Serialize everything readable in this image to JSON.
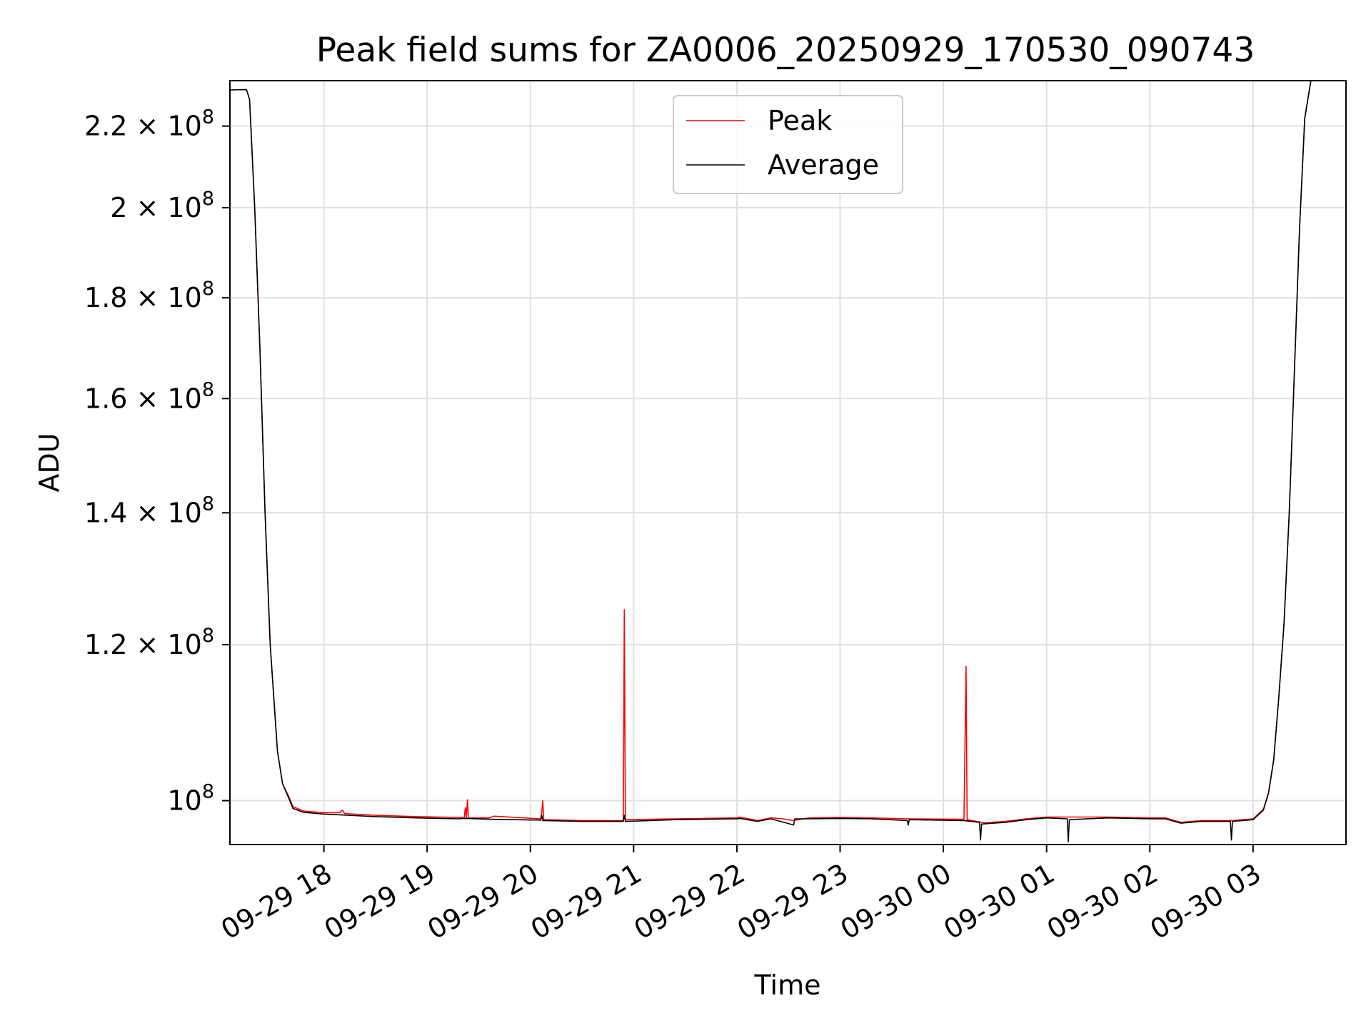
{
  "chart_data": {
    "type": "line",
    "title": "Peak field sums for ZA0006_20250929_170530_090743",
    "xlabel": "Time",
    "ylabel": "ADU",
    "yscale": "log",
    "ylim": [
      95000000.0,
      232000000.0
    ],
    "xlim": [
      17.09,
      27.9
    ],
    "grid": true,
    "legend_position": "top-center",
    "x_ticks": [
      {
        "label": "09-29 18",
        "value": 18
      },
      {
        "label": "09-29 19",
        "value": 19
      },
      {
        "label": "09-29 20",
        "value": 20
      },
      {
        "label": "09-29 21",
        "value": 21
      },
      {
        "label": "09-29 22",
        "value": 22
      },
      {
        "label": "09-29 23",
        "value": 23
      },
      {
        "label": "09-30 00",
        "value": 24
      },
      {
        "label": "09-30 01",
        "value": 25
      },
      {
        "label": "09-30 02",
        "value": 26
      },
      {
        "label": "09-30 03",
        "value": 27
      }
    ],
    "y_ticks": [
      {
        "mantissa": "10",
        "exponent": "8",
        "value": 100000000.0
      },
      {
        "mantissa": "1.2 × 10",
        "exponent": "8",
        "value": 120000000.0
      },
      {
        "mantissa": "1.4 × 10",
        "exponent": "8",
        "value": 140000000.0
      },
      {
        "mantissa": "1.6 × 10",
        "exponent": "8",
        "value": 160000000.0
      },
      {
        "mantissa": "1.8 × 10",
        "exponent": "8",
        "value": 180000000.0
      },
      {
        "mantissa": "2 × 10",
        "exponent": "8",
        "value": 200000000.0
      },
      {
        "mantissa": "2.2 × 10",
        "exponent": "8",
        "value": 220000000.0
      }
    ],
    "series": [
      {
        "name": "Peak",
        "color": "#ff0000",
        "points": [
          [
            17.09,
            229500000
          ],
          [
            17.25,
            229600000
          ],
          [
            17.28,
            227000000
          ],
          [
            17.33,
            200000000
          ],
          [
            17.38,
            170000000
          ],
          [
            17.43,
            140000000
          ],
          [
            17.48,
            120000000
          ],
          [
            17.55,
            106000000
          ],
          [
            17.6,
            102000000
          ],
          [
            17.66,
            100500000
          ],
          [
            17.7,
            99300000
          ],
          [
            17.8,
            98800000
          ],
          [
            18.0,
            98600000
          ],
          [
            18.15,
            98600000
          ],
          [
            18.18,
            98900000
          ],
          [
            18.2,
            98500000
          ],
          [
            18.5,
            98300000
          ],
          [
            18.9,
            98150000
          ],
          [
            19.3,
            98050000
          ],
          [
            19.36,
            98050000
          ],
          [
            19.37,
            99200000
          ],
          [
            19.38,
            98000000
          ],
          [
            19.39,
            100100000
          ],
          [
            19.4,
            98000000
          ],
          [
            19.6,
            98000000
          ],
          [
            19.65,
            98200000
          ],
          [
            20.1,
            97900000
          ],
          [
            20.11,
            98700000
          ],
          [
            20.12,
            100000000
          ],
          [
            20.13,
            97800000
          ],
          [
            20.5,
            97700000
          ],
          [
            20.9,
            97700000
          ],
          [
            20.91,
            125000000
          ],
          [
            20.92,
            97800000
          ],
          [
            21.4,
            97900000
          ],
          [
            22.0,
            98000000
          ],
          [
            22.03,
            98100000
          ],
          [
            22.2,
            97700000
          ],
          [
            22.33,
            98000000
          ],
          [
            22.45,
            97900000
          ],
          [
            22.55,
            97700000
          ],
          [
            22.7,
            98000000
          ],
          [
            23.0,
            98050000
          ],
          [
            23.3,
            98000000
          ],
          [
            23.65,
            97900000
          ],
          [
            24.2,
            97850000
          ],
          [
            24.22,
            117000000
          ],
          [
            24.23,
            97800000
          ],
          [
            24.4,
            97450000
          ],
          [
            24.6,
            97600000
          ],
          [
            24.8,
            97900000
          ],
          [
            25.0,
            98100000
          ],
          [
            25.3,
            98100000
          ],
          [
            25.6,
            98100000
          ],
          [
            26.0,
            98000000
          ],
          [
            26.15,
            98000000
          ],
          [
            26.3,
            97500000
          ],
          [
            26.5,
            97700000
          ],
          [
            26.8,
            97700000
          ],
          [
            27.0,
            97900000
          ],
          [
            27.1,
            99000000
          ],
          [
            27.15,
            101000000
          ],
          [
            27.2,
            105000000
          ],
          [
            27.25,
            113000000
          ],
          [
            27.3,
            123000000
          ],
          [
            27.35,
            140000000
          ],
          [
            27.4,
            165000000
          ],
          [
            27.45,
            195000000
          ],
          [
            27.5,
            222000000
          ],
          [
            27.56,
            232000000
          ],
          [
            27.9,
            232000000
          ]
        ]
      },
      {
        "name": "Average",
        "color": "#000000",
        "points": [
          [
            17.09,
            229500000
          ],
          [
            17.25,
            229600000
          ],
          [
            17.28,
            227000000
          ],
          [
            17.33,
            200000000
          ],
          [
            17.38,
            170000000
          ],
          [
            17.43,
            140000000
          ],
          [
            17.48,
            120000000
          ],
          [
            17.55,
            106000000
          ],
          [
            17.6,
            102000000
          ],
          [
            17.66,
            100300000
          ],
          [
            17.7,
            99100000
          ],
          [
            17.8,
            98650000
          ],
          [
            18.0,
            98450000
          ],
          [
            18.5,
            98150000
          ],
          [
            18.9,
            98000000
          ],
          [
            19.3,
            97900000
          ],
          [
            19.37,
            97950000
          ],
          [
            19.6,
            97850000
          ],
          [
            20.1,
            97750000
          ],
          [
            20.11,
            98300000
          ],
          [
            20.12,
            97700000
          ],
          [
            20.5,
            97600000
          ],
          [
            20.9,
            97600000
          ],
          [
            20.91,
            98300000
          ],
          [
            20.92,
            97600000
          ],
          [
            21.4,
            97800000
          ],
          [
            22.0,
            97900000
          ],
          [
            22.03,
            97950000
          ],
          [
            22.2,
            97600000
          ],
          [
            22.33,
            97900000
          ],
          [
            22.55,
            97200000
          ],
          [
            22.56,
            97900000
          ],
          [
            22.7,
            97900000
          ],
          [
            23.0,
            97950000
          ],
          [
            23.3,
            97900000
          ],
          [
            23.65,
            97700000
          ],
          [
            23.66,
            97200000
          ],
          [
            23.67,
            97800000
          ],
          [
            24.2,
            97700000
          ],
          [
            24.35,
            97500000
          ],
          [
            24.36,
            95500000
          ],
          [
            24.37,
            97300000
          ],
          [
            24.6,
            97500000
          ],
          [
            24.8,
            97800000
          ],
          [
            25.0,
            98000000
          ],
          [
            25.2,
            97900000
          ],
          [
            25.21,
            95300000
          ],
          [
            25.22,
            97800000
          ],
          [
            25.6,
            98000000
          ],
          [
            26.0,
            97900000
          ],
          [
            26.15,
            97900000
          ],
          [
            26.3,
            97400000
          ],
          [
            26.5,
            97600000
          ],
          [
            26.78,
            97600000
          ],
          [
            26.79,
            95500000
          ],
          [
            26.8,
            97600000
          ],
          [
            27.0,
            97800000
          ],
          [
            27.1,
            98900000
          ],
          [
            27.15,
            100900000
          ],
          [
            27.2,
            104900000
          ],
          [
            27.25,
            113000000
          ],
          [
            27.3,
            123000000
          ],
          [
            27.35,
            140000000
          ],
          [
            27.4,
            165000000
          ],
          [
            27.45,
            195000000
          ],
          [
            27.5,
            222000000
          ],
          [
            27.56,
            232000000
          ],
          [
            27.9,
            232000000
          ]
        ]
      }
    ]
  }
}
